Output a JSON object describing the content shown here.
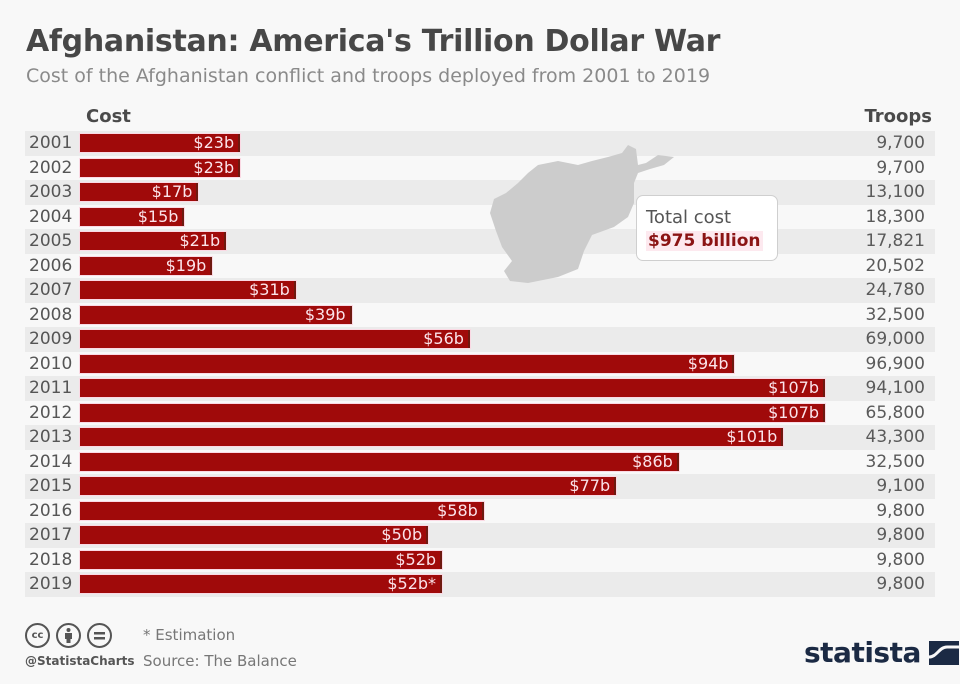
{
  "header": {
    "title": "Afghanistan: America's Trillion Dollar War",
    "subtitle": "Cost of the Afghanistan conflict and troops deployed from 2001 to 2019"
  },
  "columns": {
    "cost": "Cost",
    "troops": "Troops"
  },
  "total": {
    "label": "Total cost",
    "value": "$975 billion"
  },
  "colors": {
    "bar": "#a00a0a",
    "total_value": "#8b1414",
    "logo": "#1b2a44"
  },
  "footer": {
    "note": "* Estimation",
    "source": "Source: The Balance",
    "handle": "@StatistaCharts",
    "cc_icons": [
      "cc-icon",
      "attribution-icon",
      "no-derivatives-icon"
    ],
    "logo": "statista"
  },
  "chart_data": {
    "type": "bar",
    "orientation": "horizontal",
    "title": "Afghanistan: America's Trillion Dollar War",
    "subtitle": "Cost of the Afghanistan conflict and troops deployed from 2001 to 2019",
    "categories": [
      "2001",
      "2002",
      "2003",
      "2004",
      "2005",
      "2006",
      "2007",
      "2008",
      "2009",
      "2010",
      "2011",
      "2012",
      "2013",
      "2014",
      "2015",
      "2016",
      "2017",
      "2018",
      "2019"
    ],
    "series": [
      {
        "name": "Cost",
        "unit": "billion USD",
        "values": [
          23,
          23,
          17,
          15,
          21,
          19,
          31,
          39,
          56,
          94,
          107,
          107,
          101,
          86,
          77,
          58,
          50,
          52,
          52
        ],
        "labels": [
          "$23b",
          "$23b",
          "$17b",
          "$15b",
          "$21b",
          "$19b",
          "$31b",
          "$39b",
          "$56b",
          "$94b",
          "$107b",
          "$107b",
          "$101b",
          "$86b",
          "$77b",
          "$58b",
          "$50b",
          "$52b",
          "$52b*"
        ]
      },
      {
        "name": "Troops",
        "values": [
          9700,
          9700,
          13100,
          18300,
          17821,
          20502,
          24780,
          32500,
          69000,
          96900,
          94100,
          65800,
          43300,
          32500,
          9100,
          9800,
          9800,
          9800,
          9800
        ],
        "labels": [
          "9,700",
          "9,700",
          "13,100",
          "18,300",
          "17,821",
          "20,502",
          "24,780",
          "32,500",
          "69,000",
          "96,900",
          "94,100",
          "65,800",
          "43,300",
          "32,500",
          "9,100",
          "9,800",
          "9,800",
          "9,800",
          "9,800"
        ]
      }
    ],
    "annotations": [
      "Total cost $975 billion",
      "* Estimation"
    ],
    "xlim": [
      0,
      110
    ],
    "grid": false,
    "legend": "none"
  }
}
